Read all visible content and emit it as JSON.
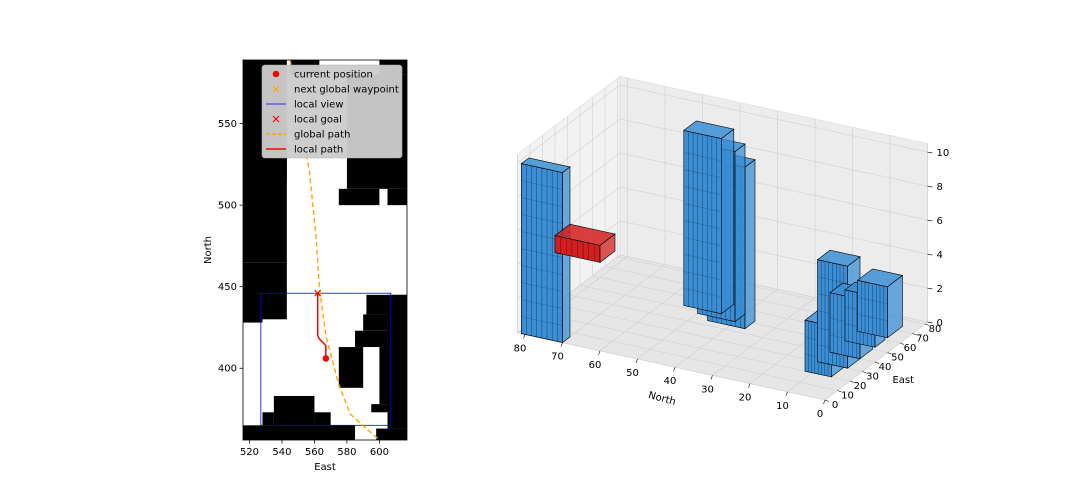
{
  "figure": {
    "background": "#ffffff"
  },
  "chart_data": [
    {
      "type": "scatter",
      "title": "",
      "xlabel": "East",
      "ylabel": "North",
      "xlim": [
        516,
        617
      ],
      "ylim": [
        356,
        589
      ],
      "xticks": [
        520,
        540,
        560,
        580,
        600
      ],
      "yticks": [
        400,
        450,
        500,
        550
      ],
      "grid": false,
      "legend_location": "upper-right",
      "colors": {
        "obstacle": "#000000",
        "free": "#ffffff",
        "current_position": "#ff0000",
        "next_global_waypoint": "#ffa500",
        "local_view": "#0000ff",
        "local_goal": "#ff0000",
        "global_path": "#ffa500",
        "local_path": "#ff0000",
        "legend_bg": "#cccccc"
      },
      "obstacles": [
        [
          516,
          543,
          515,
          589
        ],
        [
          516,
          533,
          500,
          515
        ],
        [
          516,
          541,
          475,
          500
        ],
        [
          545,
          563,
          580,
          589
        ],
        [
          600,
          617,
          580,
          589
        ],
        [
          580,
          617,
          510,
          580
        ],
        [
          575,
          600,
          500,
          510
        ],
        [
          605,
          617,
          500,
          510
        ],
        [
          516,
          543,
          465,
          580
        ],
        [
          516,
          543,
          430,
          465
        ],
        [
          516,
          528,
          428,
          440
        ],
        [
          592,
          617,
          433,
          445
        ],
        [
          605,
          617,
          363,
          445
        ],
        [
          590,
          605,
          423,
          433
        ],
        [
          585,
          605,
          413,
          423
        ],
        [
          575,
          590,
          388,
          413
        ],
        [
          600,
          617,
          378,
          413
        ],
        [
          595,
          610,
          373,
          378
        ],
        [
          535,
          560,
          365,
          383
        ],
        [
          528,
          535,
          365,
          373
        ],
        [
          560,
          570,
          365,
          373
        ],
        [
          516,
          585,
          356,
          365
        ],
        [
          598,
          617,
          356,
          363
        ]
      ],
      "global_path": {
        "name": "global path",
        "x": [
          545,
          550,
          557,
          561,
          563,
          567,
          575,
          582,
          592,
          600
        ],
        "y": [
          589,
          560,
          520,
          480,
          450,
          420,
          390,
          372,
          363,
          356
        ]
      },
      "local_path": {
        "name": "local path",
        "x": [
          562,
          562,
          563,
          567,
          567
        ],
        "y": [
          446,
          420,
          418,
          414,
          406
        ]
      },
      "local_view": {
        "name": "local view",
        "x_range": [
          527,
          607
        ],
        "y_range": [
          365,
          446
        ]
      },
      "current_position": {
        "name": "current position",
        "x": 567,
        "y": 406
      },
      "local_goal": {
        "name": "local goal",
        "x": 562,
        "y": 446
      },
      "legend": [
        "current position",
        "next global waypoint",
        "local view",
        "local goal",
        "global path",
        "local path"
      ]
    },
    {
      "type": "3d-voxel",
      "xlabel": "North",
      "ylabel": "East",
      "zlabel": "",
      "xticks": [
        0,
        10,
        20,
        30,
        40,
        50,
        60,
        70,
        80
      ],
      "yticks": [
        0,
        10,
        20,
        30,
        40,
        50,
        60,
        70,
        80
      ],
      "zticks": [
        0,
        2,
        4,
        6,
        8,
        10
      ],
      "xlim": [
        0,
        82
      ],
      "ylim": [
        0,
        82
      ],
      "zlim": [
        0,
        10.5
      ],
      "grid": true,
      "colors": {
        "obstacle": "#3a8fd6",
        "path": "#d31f1f",
        "pane": "#f2f2f2",
        "edge": "#000000"
      },
      "obstacle_blocks": [
        [
          70,
          81,
          0,
          6,
          0,
          10
        ],
        [
          45,
          55,
          52,
          62,
          0,
          10.3
        ],
        [
          40,
          50,
          48,
          56,
          0,
          10
        ],
        [
          36,
          46,
          44,
          52,
          0,
          9.5
        ],
        [
          4,
          12,
          30,
          40,
          0,
          6
        ],
        [
          4,
          12,
          40,
          50,
          0,
          3.5
        ],
        [
          4,
          12,
          52,
          60,
          0,
          3
        ],
        [
          4,
          12,
          62,
          74,
          0,
          3
        ],
        [
          5,
          12,
          20,
          30,
          0,
          3
        ]
      ],
      "path_block": [
        60,
        72,
        0,
        12,
        5.2,
        6.2
      ]
    }
  ]
}
